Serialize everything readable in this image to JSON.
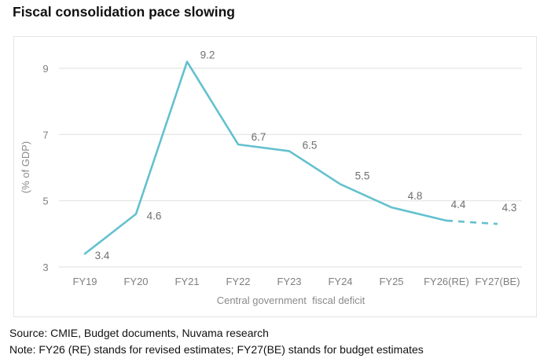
{
  "header": {
    "title": "Fiscal consolidation pace slowing"
  },
  "footer": {
    "source": "Source: CMIE, Budget documents, Nuvama research",
    "note": "Note: FY26 (RE) stands for revised estimates; FY27(BE) stands for budget estimates"
  },
  "colors": {
    "line": "#63c1cf",
    "grid": "#e3e3e3",
    "frame": "#e4e4e4"
  },
  "chart_data": {
    "type": "line",
    "title": "Fiscal consolidation pace slowing",
    "xlabel": "Central government  fiscal deficit",
    "ylabel": "(% of GDP)",
    "categories": [
      "FY19",
      "FY20",
      "FY21",
      "FY22",
      "FY23",
      "FY24",
      "FY25",
      "FY26(RE)",
      "FY27(BE)"
    ],
    "series": [
      {
        "name": "Central government fiscal deficit",
        "values": [
          3.4,
          4.6,
          9.2,
          6.7,
          6.5,
          5.5,
          4.8,
          4.4,
          4.3
        ],
        "labels": [
          "3.4",
          "4.6",
          "9.2",
          "6.7",
          "6.5",
          "5.5",
          "4.8",
          "4.4",
          "4.3"
        ],
        "dashed_from_index": 7
      }
    ],
    "ylim": [
      3,
      9
    ],
    "yticks": [
      3,
      5,
      7,
      9
    ],
    "ytick_labels": [
      "3",
      "5",
      "7",
      "9"
    ],
    "grid": true,
    "legend": "none"
  }
}
